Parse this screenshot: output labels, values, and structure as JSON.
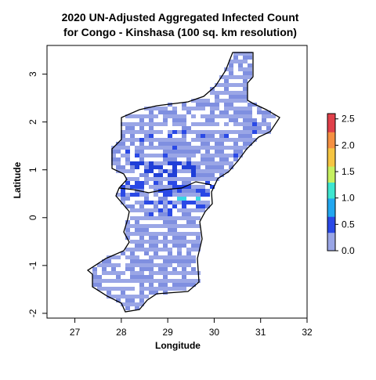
{
  "title_line1": "2020 UN-Adjusted Aggregated Infected Count",
  "title_line2": "for Congo - Kinshasa (100 sq. km resolution)",
  "colors": {
    "low": "#9aa6e6",
    "low2": "#7f8fe0",
    "mid": "#2a49e6",
    "dark": "#1f3fd8",
    "cyan": "#38d7e6",
    "scale": [
      "#9aa6e6",
      "#2a49e6",
      "#22a7f0",
      "#3ee6d0",
      "#c6f060",
      "#f5c542",
      "#f59042",
      "#e0404a"
    ]
  },
  "chart_data": {
    "type": "heatmap",
    "title": "2020 UN-Adjusted Aggregated Infected Count\nfor Congo - Kinshasa (100 sq. km resolution)",
    "xlabel": "Longitude",
    "ylabel": "Latitude",
    "xlim": [
      26.4,
      32.0
    ],
    "ylim": [
      -2.1,
      3.6
    ],
    "x_ticks": [
      "27",
      "28",
      "29",
      "30",
      "31",
      "32"
    ],
    "y_ticks": [
      "-2",
      "-1",
      "0",
      "1",
      "2",
      "3"
    ],
    "colorbar": {
      "range": [
        0.0,
        2.6
      ],
      "ticks": [
        "0.0",
        "0.5",
        "1.0",
        "1.5",
        "2.0",
        "2.5"
      ],
      "note": "continuous color scale"
    }
  }
}
